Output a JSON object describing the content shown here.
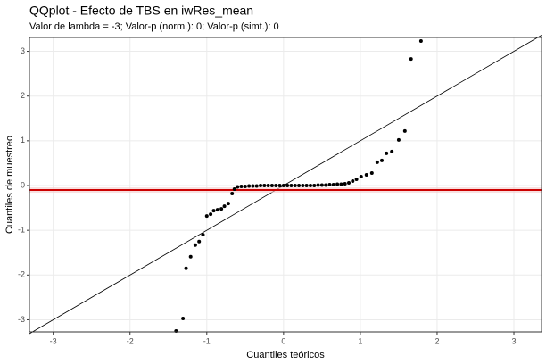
{
  "chart_data": {
    "type": "scatter",
    "title": "QQplot - Efecto de TBS en iwRes_mean",
    "subtitle": "Valor de lambda = -3; Valor-p (norm.): 0; Valor-p (simt.): 0",
    "x_label": "Cuantiles teóricos",
    "y_label": "Cuantiles de muestreo",
    "x": [
      -1.4,
      -1.31,
      -1.27,
      -1.21,
      -1.15,
      -1.1,
      -1.05,
      -1.0,
      -0.95,
      -0.91,
      -0.86,
      -0.81,
      -0.77,
      -0.72,
      -0.67,
      -0.64,
      -0.6,
      -0.55,
      -0.5,
      -0.45,
      -0.4,
      -0.35,
      -0.3,
      -0.25,
      -0.2,
      -0.15,
      -0.1,
      -0.05,
      0,
      0.05,
      0.1,
      0.15,
      0.2,
      0.25,
      0.3,
      0.35,
      0.4,
      0.45,
      0.5,
      0.55,
      0.6,
      0.65,
      0.7,
      0.75,
      0.8,
      0.85,
      0.9,
      0.95,
      1.01,
      1.08,
      1.15,
      1.22,
      1.28,
      1.34,
      1.41,
      1.5,
      1.58,
      1.66,
      1.79
    ],
    "values": [
      -3.25,
      -2.97,
      -1.85,
      -1.59,
      -1.33,
      -1.25,
      -1.1,
      -0.68,
      -0.64,
      -0.56,
      -0.54,
      -0.52,
      -0.46,
      -0.4,
      -0.18,
      -0.08,
      -0.03,
      -0.02,
      -0.02,
      -0.01,
      -0.01,
      -0.01,
      0,
      0,
      0,
      0,
      0,
      0,
      0,
      0,
      0,
      0,
      0,
      0,
      0,
      0,
      0,
      0.01,
      0.01,
      0.01,
      0.02,
      0.02,
      0.03,
      0.03,
      0.04,
      0.06,
      0.1,
      0.14,
      0.2,
      0.24,
      0.28,
      0.52,
      0.56,
      0.72,
      0.76,
      1.02,
      1.22,
      2.83,
      3.23
    ],
    "color": "#000000",
    "reference_line": {
      "slope": 1,
      "intercept": 0,
      "color": "#000000"
    },
    "hline": {
      "value": -0.1,
      "color": "#cc0000"
    },
    "xlim": [
      -3.31,
      3.36
    ],
    "ylim": [
      -3.27,
      3.31
    ],
    "xticks": [
      -3,
      -2,
      -1,
      0,
      1,
      2,
      3
    ],
    "yticks": [
      -3,
      -2,
      -1,
      0,
      1,
      2,
      3
    ],
    "grid": true
  }
}
